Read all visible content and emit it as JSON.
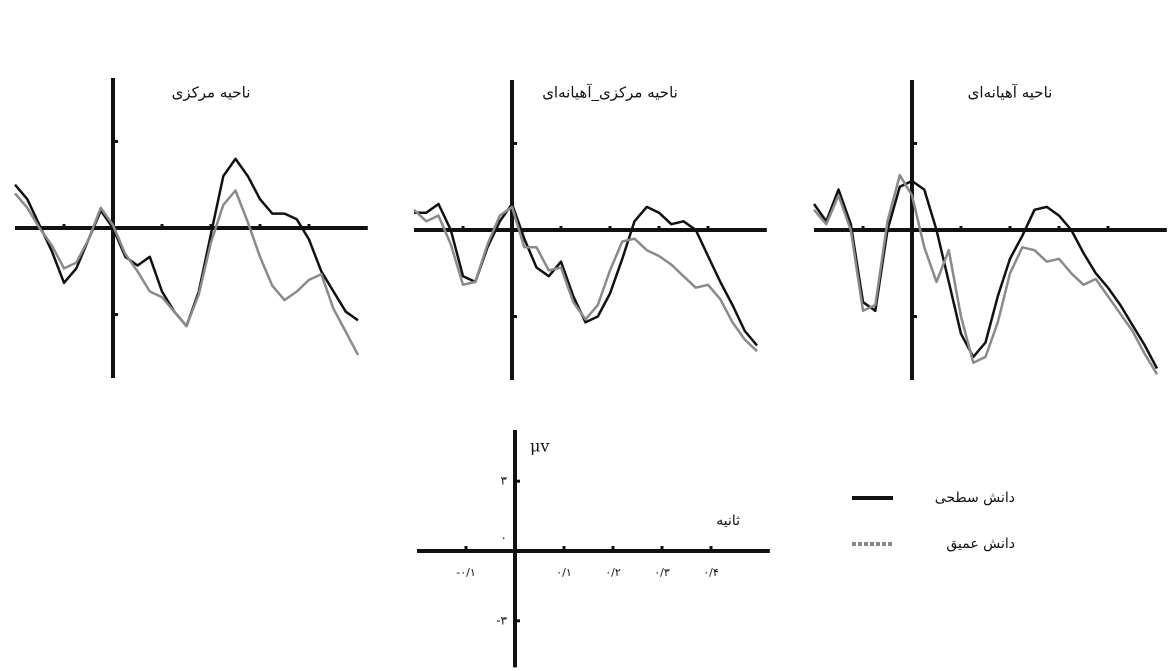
{
  "chart_data": [
    {
      "type": "line",
      "title": "ناحیه مرکزی",
      "xlim": [
        -0.2,
        0.52
      ],
      "ylim": [
        -5.2,
        5.2
      ],
      "x": [
        -0.2,
        -0.175,
        -0.15,
        -0.125,
        -0.1,
        -0.075,
        -0.05,
        -0.025,
        0,
        0.025,
        0.05,
        0.075,
        0.1,
        0.125,
        0.15,
        0.175,
        0.2,
        0.225,
        0.25,
        0.275,
        0.3,
        0.325,
        0.35,
        0.375,
        0.4,
        0.425,
        0.45,
        0.475,
        0.5
      ],
      "series": [
        {
          "name": "دانش سطحی",
          "color": "#111111",
          "values": [
            1.5,
            1.0,
            0.1,
            -0.8,
            -1.9,
            -1.4,
            -0.4,
            0.6,
            0,
            -1.0,
            -1.3,
            -1.0,
            -2.2,
            -2.9,
            -3.4,
            -2.2,
            -0.2,
            1.8,
            2.4,
            1.8,
            1.0,
            0.5,
            0.5,
            0.3,
            -0.4,
            -1.5,
            -2.2,
            -2.9,
            -3.2
          ]
        },
        {
          "name": "دانش عمیق",
          "color": "#8a8a8a",
          "values": [
            1.2,
            0.7,
            0.0,
            -0.6,
            -1.4,
            -1.2,
            -0.4,
            0.7,
            0.1,
            -0.9,
            -1.5,
            -2.2,
            -2.4,
            -2.9,
            -3.4,
            -2.3,
            -0.5,
            0.8,
            1.3,
            0.2,
            -1.0,
            -2.0,
            -2.5,
            -2.2,
            -1.8,
            -1.6,
            -2.8,
            -3.6,
            -4.4
          ]
        }
      ]
    },
    {
      "type": "line",
      "title": "ناحیه مرکزی_آهیانه‌ای",
      "xlim": [
        -0.2,
        0.52
      ],
      "ylim": [
        -5.2,
        5.2
      ],
      "x": [
        -0.2,
        -0.175,
        -0.15,
        -0.125,
        -0.1,
        -0.075,
        -0.05,
        -0.025,
        0,
        0.025,
        0.05,
        0.075,
        0.1,
        0.125,
        0.15,
        0.175,
        0.2,
        0.225,
        0.25,
        0.275,
        0.3,
        0.325,
        0.35,
        0.375,
        0.4,
        0.425,
        0.45,
        0.475,
        0.5
      ],
      "series": [
        {
          "name": "دانش سطحی",
          "color": "#111111",
          "values": [
            0.6,
            0.6,
            0.9,
            0.0,
            -1.6,
            -1.8,
            -0.6,
            0.3,
            0.9,
            -0.3,
            -1.3,
            -1.6,
            -1.1,
            -2.3,
            -3.2,
            -3.0,
            -2.2,
            -1.0,
            0.3,
            0.8,
            0.6,
            0.2,
            0.3,
            0.0,
            -0.9,
            -1.8,
            -2.6,
            -3.5,
            -4.0
          ]
        },
        {
          "name": "دانش عمیق",
          "color": "#8a8a8a",
          "values": [
            0.7,
            0.3,
            0.5,
            -0.5,
            -1.9,
            -1.8,
            -0.5,
            0.5,
            0.8,
            -0.6,
            -0.6,
            -1.4,
            -1.3,
            -2.5,
            -3.1,
            -2.6,
            -1.4,
            -0.4,
            -0.3,
            -0.7,
            -0.9,
            -1.2,
            -1.6,
            -2.0,
            -1.9,
            -2.4,
            -3.2,
            -3.8,
            -4.2
          ]
        }
      ]
    },
    {
      "type": "line",
      "title": "ناحیه آهیانه‌ای",
      "xlim": [
        -0.2,
        0.52
      ],
      "ylim": [
        -5.2,
        5.2
      ],
      "x": [
        -0.2,
        -0.175,
        -0.15,
        -0.125,
        -0.1,
        -0.075,
        -0.05,
        -0.025,
        0,
        0.025,
        0.05,
        0.075,
        0.1,
        0.125,
        0.15,
        0.175,
        0.2,
        0.225,
        0.25,
        0.275,
        0.3,
        0.325,
        0.35,
        0.375,
        0.4,
        0.425,
        0.45,
        0.475,
        0.5
      ],
      "series": [
        {
          "name": "دانش سطحی",
          "color": "#111111",
          "values": [
            0.9,
            0.3,
            1.4,
            0.2,
            -2.5,
            -2.8,
            0.0,
            1.5,
            1.7,
            1.4,
            0.0,
            -1.8,
            -3.6,
            -4.4,
            -3.9,
            -2.3,
            -1.0,
            -0.2,
            0.7,
            0.8,
            0.5,
            0.0,
            -0.8,
            -1.5,
            -2.0,
            -2.6,
            -3.3,
            -4.0,
            -4.8
          ]
        },
        {
          "name": "دانش عمیق",
          "color": "#8a8a8a",
          "values": [
            0.7,
            0.2,
            1.2,
            0.0,
            -2.8,
            -2.6,
            0.3,
            1.9,
            1.2,
            -0.6,
            -1.8,
            -0.7,
            -3.0,
            -4.6,
            -4.4,
            -3.2,
            -1.5,
            -0.6,
            -0.7,
            -1.1,
            -1.0,
            -1.5,
            -1.9,
            -1.7,
            -2.3,
            -2.9,
            -3.5,
            -4.3,
            -5.0
          ]
        }
      ]
    },
    {
      "type": "scale",
      "x_label": "ثانیه",
      "y_label": "μv",
      "xlim": [
        -0.2,
        0.52
      ],
      "ylim": [
        -5,
        5.2
      ],
      "xticks": [
        {
          "value": -0.1,
          "label": "-۰/۱"
        },
        {
          "value": 0.1,
          "label": "۰/۱"
        },
        {
          "value": 0.2,
          "label": "۰/۲"
        },
        {
          "value": 0.3,
          "label": "۰/۳"
        },
        {
          "value": 0.4,
          "label": "۰/۴"
        }
      ],
      "yticks": [
        {
          "value": 3,
          "label": "۳"
        },
        {
          "value": 0,
          "label": "۰"
        },
        {
          "value": -3,
          "label": "-۳"
        }
      ]
    }
  ]
}
